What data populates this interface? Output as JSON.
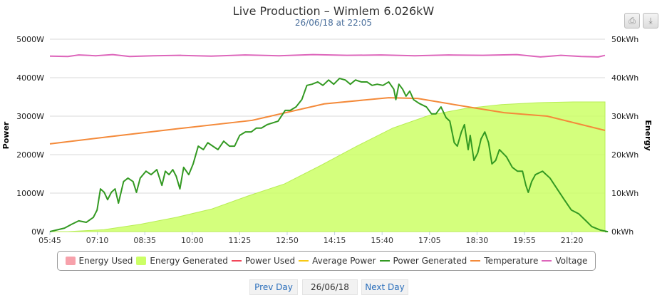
{
  "header": {
    "title": "Live Production – Wimlem 6.026kW",
    "subtitle": "26/06/18 at 22:05"
  },
  "toolbar": {
    "print_label": "⎙",
    "download_label": "⤓"
  },
  "nav": {
    "prev": "Prev Day",
    "date": "26/06/18",
    "next": "Next Day"
  },
  "chart_data": {
    "type": "line",
    "title": "Live Production – Wimlem 6.026kW",
    "subtitle": "26/06/18 at 22:05",
    "ylabel": "Power",
    "y2label": "Energy",
    "ylim": [
      0,
      5000
    ],
    "y2lim": [
      0,
      50
    ],
    "yticks": [
      "0W",
      "1000W",
      "2000W",
      "3000W",
      "4000W",
      "5000W"
    ],
    "y2ticks": [
      "0kWh",
      "10kWh",
      "20kWh",
      "30kWh",
      "40kWh",
      "50kWh"
    ],
    "xticks": [
      "05:45",
      "07:10",
      "08:35",
      "10:00",
      "11:25",
      "12:50",
      "14:15",
      "15:40",
      "17:05",
      "18:30",
      "19:55",
      "21:20"
    ],
    "xlim_hours": [
      5.75,
      22.1
    ],
    "legend": [
      {
        "name": "Energy Used",
        "color": "#f7a1ab",
        "kind": "area"
      },
      {
        "name": "Energy Generated",
        "color": "#ccff66",
        "kind": "area"
      },
      {
        "name": "Power Used",
        "color": "#f2465a",
        "kind": "line"
      },
      {
        "name": "Average Power",
        "color": "#f7c814",
        "kind": "line"
      },
      {
        "name": "Power Generated",
        "color": "#339922",
        "kind": "line"
      },
      {
        "name": "Temperature",
        "color": "#f48a3a",
        "kind": "line"
      },
      {
        "name": "Voltage",
        "color": "#dd66bb",
        "kind": "line"
      }
    ],
    "power_generated_W": [
      [
        5.75,
        0
      ],
      [
        6.18,
        90
      ],
      [
        6.39,
        190
      ],
      [
        6.6,
        280
      ],
      [
        6.82,
        240
      ],
      [
        7.03,
        370
      ],
      [
        7.14,
        560
      ],
      [
        7.24,
        1110
      ],
      [
        7.35,
        1020
      ],
      [
        7.45,
        830
      ],
      [
        7.56,
        1020
      ],
      [
        7.67,
        1110
      ],
      [
        7.77,
        740
      ],
      [
        7.92,
        1300
      ],
      [
        8.05,
        1390
      ],
      [
        8.2,
        1300
      ],
      [
        8.3,
        1020
      ],
      [
        8.41,
        1390
      ],
      [
        8.58,
        1570
      ],
      [
        8.73,
        1480
      ],
      [
        8.9,
        1610
      ],
      [
        9.05,
        1200
      ],
      [
        9.15,
        1570
      ],
      [
        9.26,
        1480
      ],
      [
        9.37,
        1610
      ],
      [
        9.47,
        1440
      ],
      [
        9.58,
        1110
      ],
      [
        9.69,
        1670
      ],
      [
        9.84,
        1480
      ],
      [
        9.97,
        1760
      ],
      [
        10.12,
        2220
      ],
      [
        10.27,
        2130
      ],
      [
        10.4,
        2310
      ],
      [
        10.55,
        2220
      ],
      [
        10.7,
        2130
      ],
      [
        10.87,
        2350
      ],
      [
        11.04,
        2220
      ],
      [
        11.19,
        2220
      ],
      [
        11.34,
        2500
      ],
      [
        11.51,
        2590
      ],
      [
        11.68,
        2590
      ],
      [
        11.83,
        2690
      ],
      [
        11.98,
        2690
      ],
      [
        12.15,
        2780
      ],
      [
        12.47,
        2870
      ],
      [
        12.68,
        3150
      ],
      [
        12.83,
        3150
      ],
      [
        13.0,
        3240
      ],
      [
        13.17,
        3430
      ],
      [
        13.32,
        3800
      ],
      [
        13.47,
        3830
      ],
      [
        13.64,
        3890
      ],
      [
        13.79,
        3800
      ],
      [
        13.96,
        3940
      ],
      [
        14.11,
        3830
      ],
      [
        14.28,
        3980
      ],
      [
        14.45,
        3940
      ],
      [
        14.6,
        3830
      ],
      [
        14.75,
        3940
      ],
      [
        14.92,
        3890
      ],
      [
        15.09,
        3890
      ],
      [
        15.24,
        3800
      ],
      [
        15.39,
        3830
      ],
      [
        15.56,
        3800
      ],
      [
        15.73,
        3890
      ],
      [
        15.88,
        3700
      ],
      [
        15.94,
        3430
      ],
      [
        16.03,
        3830
      ],
      [
        16.14,
        3700
      ],
      [
        16.24,
        3520
      ],
      [
        16.35,
        3650
      ],
      [
        16.46,
        3430
      ],
      [
        16.63,
        3330
      ],
      [
        16.84,
        3240
      ],
      [
        16.99,
        3060
      ],
      [
        17.12,
        3060
      ],
      [
        17.27,
        3240
      ],
      [
        17.42,
        2960
      ],
      [
        17.53,
        2870
      ],
      [
        17.66,
        2310
      ],
      [
        17.75,
        2220
      ],
      [
        17.87,
        2590
      ],
      [
        17.96,
        2780
      ],
      [
        18.07,
        2130
      ],
      [
        18.13,
        2500
      ],
      [
        18.24,
        1850
      ],
      [
        18.35,
        2040
      ],
      [
        18.45,
        2410
      ],
      [
        18.56,
        2590
      ],
      [
        18.67,
        2310
      ],
      [
        18.77,
        1760
      ],
      [
        18.88,
        1850
      ],
      [
        18.99,
        2130
      ],
      [
        19.09,
        2040
      ],
      [
        19.2,
        1940
      ],
      [
        19.37,
        1670
      ],
      [
        19.52,
        1570
      ],
      [
        19.67,
        1570
      ],
      [
        19.77,
        1200
      ],
      [
        19.84,
        1020
      ],
      [
        19.94,
        1300
      ],
      [
        20.05,
        1480
      ],
      [
        20.26,
        1570
      ],
      [
        20.48,
        1390
      ],
      [
        20.69,
        1110
      ],
      [
        20.9,
        830
      ],
      [
        21.11,
        560
      ],
      [
        21.33,
        460
      ],
      [
        21.54,
        280
      ],
      [
        21.71,
        130
      ],
      [
        21.96,
        40
      ],
      [
        22.17,
        0
      ],
      [
        22.1,
        0
      ]
    ],
    "energy_generated_kWh": [
      [
        5.75,
        0
      ],
      [
        6.28,
        0
      ],
      [
        7.35,
        0.5
      ],
      [
        8.41,
        1.9
      ],
      [
        9.47,
        3.7
      ],
      [
        10.53,
        5.9
      ],
      [
        11.6,
        9.3
      ],
      [
        12.66,
        12.4
      ],
      [
        13.73,
        17.2
      ],
      [
        14.79,
        22.2
      ],
      [
        15.85,
        26.9
      ],
      [
        16.92,
        30.2
      ],
      [
        17.98,
        32
      ],
      [
        19.05,
        33
      ],
      [
        20.11,
        33.5
      ],
      [
        21.17,
        33.7
      ],
      [
        22.1,
        33.7
      ]
    ],
    "temperature_W_scale": [
      [
        5.75,
        2280
      ],
      [
        7.45,
        2460
      ],
      [
        9.58,
        2680
      ],
      [
        11.7,
        2890
      ],
      [
        13.83,
        3320
      ],
      [
        15.73,
        3480
      ],
      [
        16.58,
        3460
      ],
      [
        18.07,
        3240
      ],
      [
        19.13,
        3090
      ],
      [
        20.4,
        3000
      ],
      [
        22.1,
        2630
      ]
    ],
    "voltage_W_scale": [
      [
        5.75,
        4560
      ],
      [
        6.28,
        4550
      ],
      [
        6.6,
        4590
      ],
      [
        7.1,
        4570
      ],
      [
        7.6,
        4600
      ],
      [
        8.1,
        4550
      ],
      [
        8.8,
        4570
      ],
      [
        9.6,
        4580
      ],
      [
        10.5,
        4560
      ],
      [
        11.5,
        4590
      ],
      [
        12.5,
        4570
      ],
      [
        13.5,
        4600
      ],
      [
        14.5,
        4580
      ],
      [
        15.5,
        4590
      ],
      [
        16.5,
        4570
      ],
      [
        17.5,
        4590
      ],
      [
        18.5,
        4580
      ],
      [
        19.5,
        4600
      ],
      [
        20.2,
        4540
      ],
      [
        20.8,
        4580
      ],
      [
        21.4,
        4550
      ],
      [
        21.9,
        4540
      ],
      [
        22.1,
        4580
      ]
    ]
  }
}
